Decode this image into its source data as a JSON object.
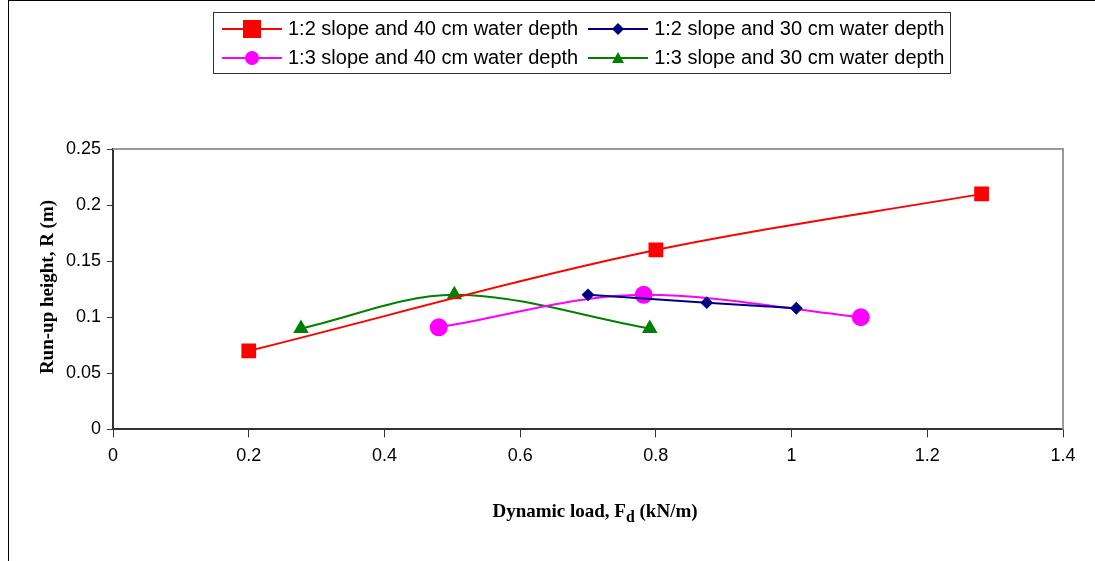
{
  "chart_data": {
    "type": "line",
    "xlabel": "Dynamic load, F$_{d}$ (kN/m)",
    "ylabel": "Run-up height, R (m)",
    "xlim": [
      0,
      1.4
    ],
    "xticks": [
      0,
      0.2,
      0.4,
      0.6,
      0.8,
      1,
      1.2,
      1.4
    ],
    "ylim": [
      0,
      0.25
    ],
    "yticks": [
      0,
      0.05,
      0.1,
      0.15,
      0.2,
      0.25
    ],
    "grid": false,
    "legend": "top",
    "series": [
      {
        "name": "1:2 slope and 40 cm water depth",
        "color": "#ff0000",
        "marker": "square",
        "x": [
          0.2,
          0.8,
          1.28
        ],
        "values": [
          0.07,
          0.16,
          0.21
        ]
      },
      {
        "name": "1:2 slope and 30 cm water depth",
        "color": "#000080",
        "marker": "diamond",
        "x": [
          0.7,
          0.875,
          1.007
        ],
        "values": [
          0.12,
          0.113,
          0.108
        ]
      },
      {
        "name": "1:3 slope and 40 cm water depth",
        "color": "#ff00ff",
        "marker": "circle",
        "x": [
          0.48,
          0.782,
          1.102
        ],
        "values": [
          0.091,
          0.12,
          0.1
        ]
      },
      {
        "name": "1:3 slope and 30 cm water depth",
        "color": "#008000",
        "marker": "triangle",
        "x": [
          0.277,
          0.503,
          0.791
        ],
        "values": [
          0.09,
          0.12,
          0.09
        ]
      }
    ]
  }
}
